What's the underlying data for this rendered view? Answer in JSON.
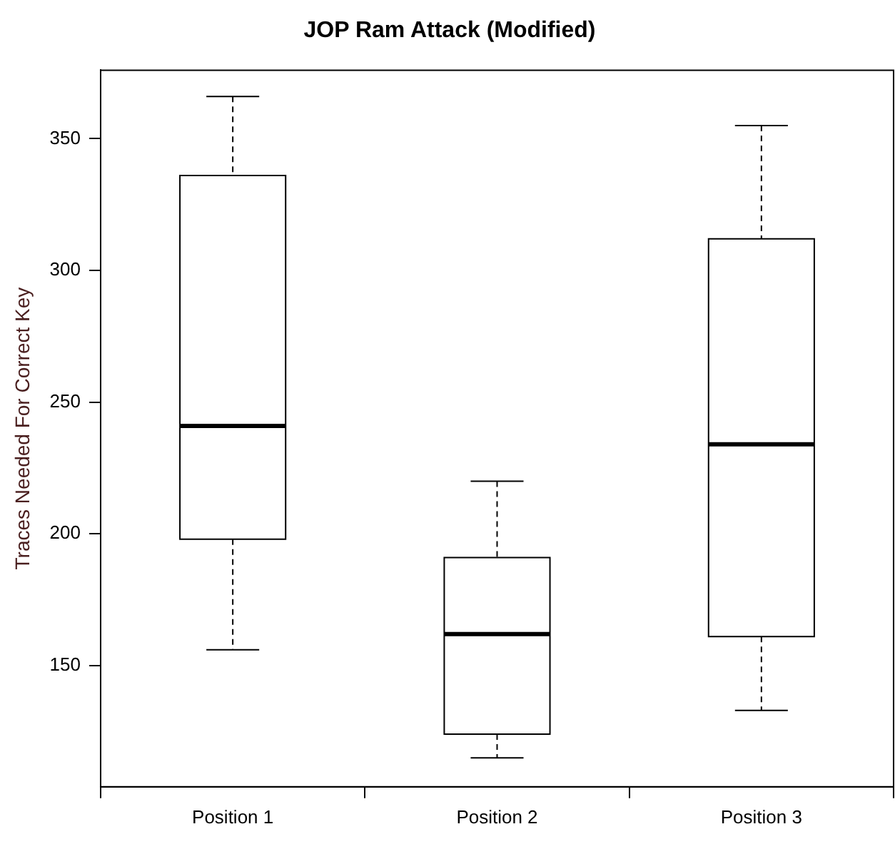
{
  "chart_data": {
    "type": "box",
    "title": "JOP Ram Attack (Modified)",
    "ylabel": "Traces Needed For Correct Key",
    "categories": [
      "Position 1",
      "Position 2",
      "Position 3"
    ],
    "series": [
      {
        "color": "#000000",
        "boxes": [
          {
            "low": 156,
            "q1": 198,
            "median": 241,
            "q3": 336,
            "high": 366
          },
          {
            "low": 115,
            "q1": 124,
            "median": 162,
            "q3": 191,
            "high": 220
          },
          {
            "low": 133,
            "q1": 161,
            "median": 234,
            "q3": 312,
            "high": 355
          }
        ]
      }
    ],
    "ylim": [
      104,
      376
    ],
    "yticks": [
      150,
      200,
      250,
      300,
      350
    ]
  }
}
